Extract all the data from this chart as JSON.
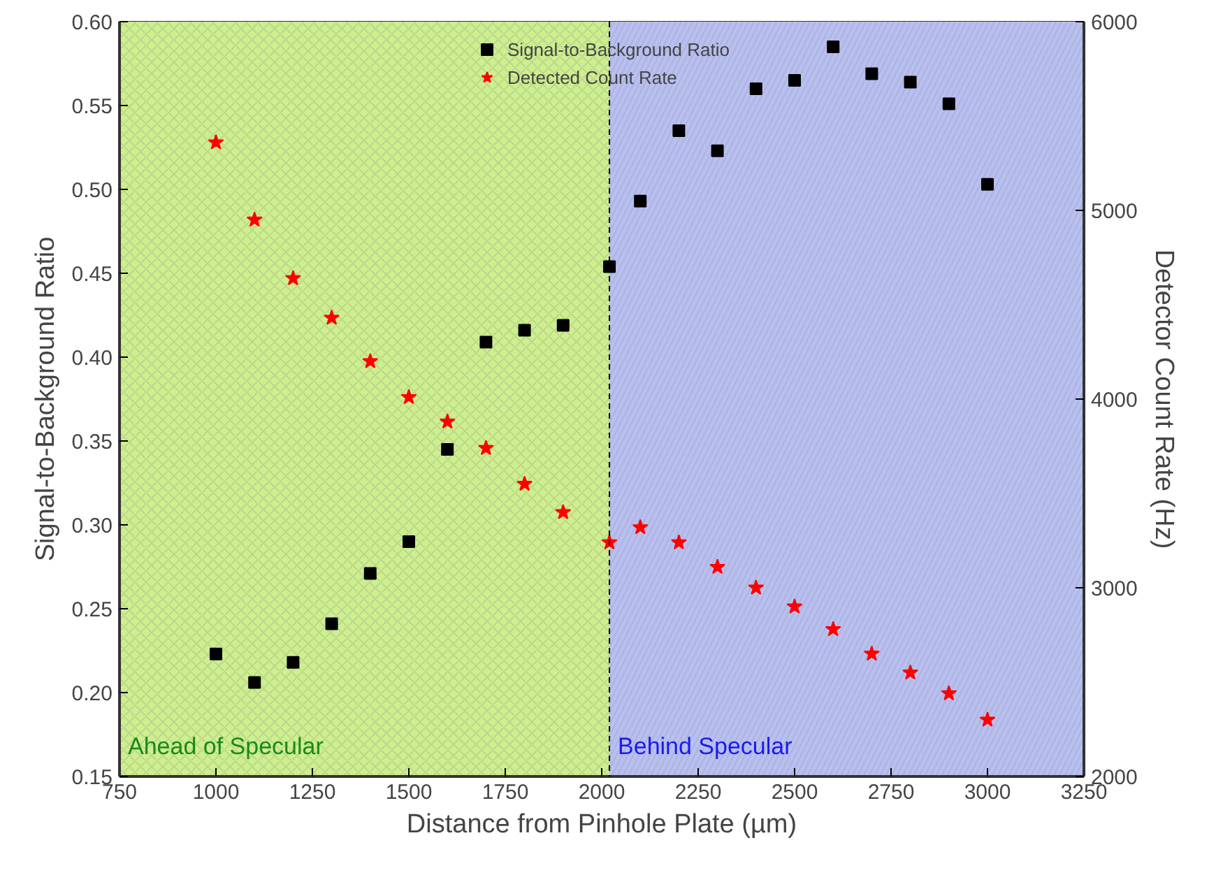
{
  "chart_data": {
    "type": "scatter",
    "xlabel": "Distance from Pinhole Plate (µm)",
    "ylabel": "Signal-to-Background Ratio",
    "y2label": "Detector Count Rate (Hz)",
    "x": [
      1000,
      1100,
      1200,
      1300,
      1400,
      1500,
      1600,
      1700,
      1800,
      1900,
      2020,
      2100,
      2200,
      2300,
      2400,
      2500,
      2600,
      2700,
      2800,
      2900,
      3000
    ],
    "series": [
      {
        "name": "Signal-to-Background Ratio",
        "color": "#000000",
        "marker": "square",
        "values": [
          0.223,
          0.206,
          0.218,
          0.241,
          0.271,
          0.29,
          0.345,
          0.409,
          0.416,
          0.419,
          0.454,
          0.493,
          0.535,
          0.523,
          0.56,
          0.565,
          0.585,
          0.569,
          0.564,
          0.551,
          0.503
        ]
      },
      {
        "name": "Detected Count Rate",
        "color": "#ff0000",
        "marker": "star",
        "axis": "y2",
        "values": [
          5360,
          4950,
          4640,
          4430,
          4200,
          4010,
          3880,
          3740,
          3550,
          3400,
          3240,
          3320,
          3240,
          3110,
          3000,
          2900,
          2780,
          2650,
          2550,
          2440,
          2300
        ]
      }
    ],
    "xlim": [
      750,
      3250
    ],
    "xticks": [
      750,
      1000,
      1250,
      1500,
      1750,
      2000,
      2250,
      2500,
      2750,
      3000,
      3250
    ],
    "ylim": [
      0.15,
      0.6
    ],
    "yticks": [
      0.15,
      {
        "value": 0.2,
        "label": "0.20"
      },
      0.25,
      {
        "value": 0.3,
        "label": "0.30"
      },
      0.35,
      {
        "value": 0.4,
        "label": "0.40"
      },
      0.45,
      {
        "value": 0.5,
        "label": "0.50"
      },
      0.55,
      {
        "value": 0.6,
        "label": "0.60"
      }
    ],
    "y2lim": [
      2000,
      6000
    ],
    "y2ticks": [
      2000,
      3000,
      4000,
      5000,
      6000
    ],
    "bands": [
      {
        "axis": "x",
        "from": 750,
        "to": 2020,
        "label": "Ahead of Specular",
        "color": "#cdf08c"
      },
      {
        "axis": "x",
        "from": 2020,
        "to": 3250,
        "label": "Behind Specular",
        "color": "#b8bff2"
      }
    ],
    "ref_lines": [
      {
        "axis": "x",
        "value": 2020,
        "color": "#000000",
        "line_style": "dashed"
      }
    ],
    "legend": "top"
  }
}
